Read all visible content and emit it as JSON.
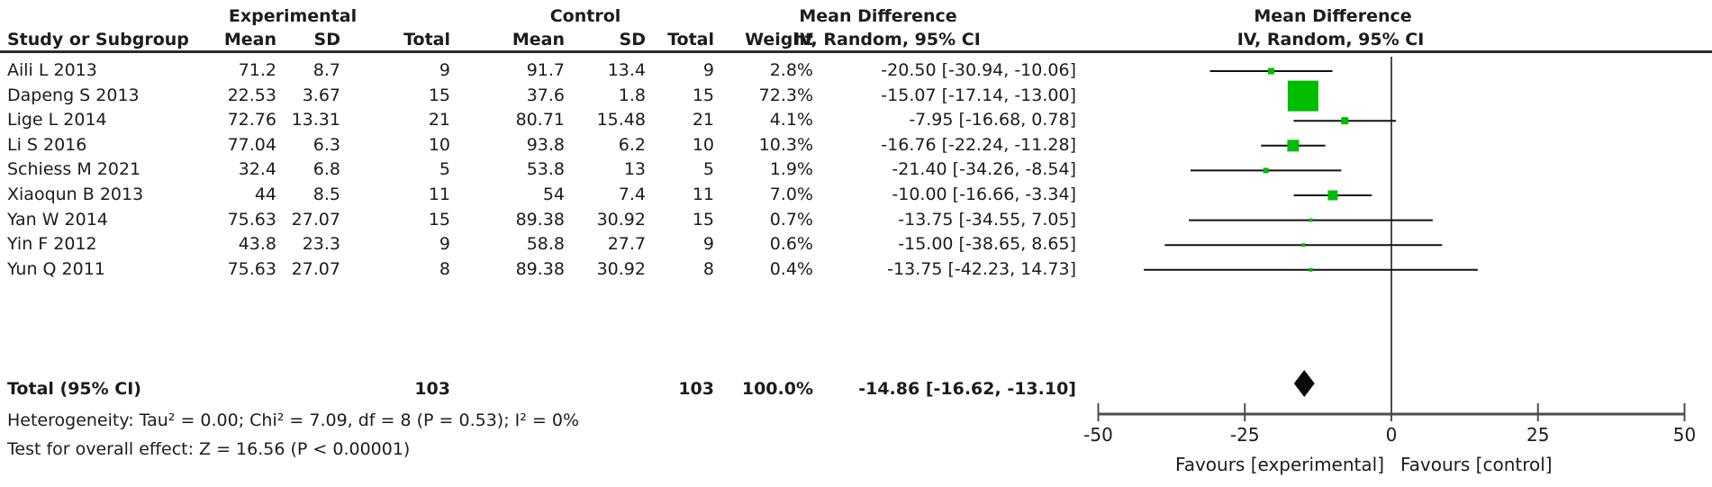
{
  "table": {
    "group_headers": {
      "experimental": "Experimental",
      "control": "Control",
      "mean_difference_left": "Mean Difference",
      "mean_difference_right": "Mean Difference"
    },
    "column_headers": {
      "study": "Study or Subgroup",
      "exp_mean": "Mean",
      "exp_sd": "SD",
      "exp_total": "Total",
      "ctrl_mean": "Mean",
      "ctrl_sd": "SD",
      "ctrl_total": "Total",
      "weight": "Weight",
      "ci_left": "IV, Random, 95% CI",
      "ci_right": "IV, Random, 95% CI"
    },
    "rows": [
      {
        "study": "Aili L 2013",
        "exp_mean": "71.2",
        "exp_sd": "8.7",
        "exp_total": "9",
        "ctrl_mean": "91.7",
        "ctrl_sd": "13.4",
        "ctrl_total": "9",
        "weight": "2.8%",
        "ci": "-20.50 [-30.94, -10.06]"
      },
      {
        "study": "Dapeng S 2013",
        "exp_mean": "22.53",
        "exp_sd": "3.67",
        "exp_total": "15",
        "ctrl_mean": "37.6",
        "ctrl_sd": "1.8",
        "ctrl_total": "15",
        "weight": "72.3%",
        "ci": "-15.07 [-17.14, -13.00]"
      },
      {
        "study": "Lige L 2014",
        "exp_mean": "72.76",
        "exp_sd": "13.31",
        "exp_total": "21",
        "ctrl_mean": "80.71",
        "ctrl_sd": "15.48",
        "ctrl_total": "21",
        "weight": "4.1%",
        "ci": "-7.95 [-16.68, 0.78]"
      },
      {
        "study": "Li S 2016",
        "exp_mean": "77.04",
        "exp_sd": "6.3",
        "exp_total": "10",
        "ctrl_mean": "93.8",
        "ctrl_sd": "6.2",
        "ctrl_total": "10",
        "weight": "10.3%",
        "ci": "-16.76 [-22.24, -11.28]"
      },
      {
        "study": "Schiess M 2021",
        "exp_mean": "32.4",
        "exp_sd": "6.8",
        "exp_total": "5",
        "ctrl_mean": "53.8",
        "ctrl_sd": "13",
        "ctrl_total": "5",
        "weight": "1.9%",
        "ci": "-21.40 [-34.26, -8.54]"
      },
      {
        "study": "Xiaoqun B 2013",
        "exp_mean": "44",
        "exp_sd": "8.5",
        "exp_total": "11",
        "ctrl_mean": "54",
        "ctrl_sd": "7.4",
        "ctrl_total": "11",
        "weight": "7.0%",
        "ci": "-10.00 [-16.66, -3.34]"
      },
      {
        "study": "Yan W  2014",
        "exp_mean": "75.63",
        "exp_sd": "27.07",
        "exp_total": "15",
        "ctrl_mean": "89.38",
        "ctrl_sd": "30.92",
        "ctrl_total": "15",
        "weight": "0.7%",
        "ci": "-13.75 [-34.55, 7.05]"
      },
      {
        "study": "Yin F 2012",
        "exp_mean": "43.8",
        "exp_sd": "23.3",
        "exp_total": "9",
        "ctrl_mean": "58.8",
        "ctrl_sd": "27.7",
        "ctrl_total": "9",
        "weight": "0.6%",
        "ci": "-15.00 [-38.65, 8.65]"
      },
      {
        "study": "Yun Q 2011",
        "exp_mean": "75.63",
        "exp_sd": "27.07",
        "exp_total": "8",
        "ctrl_mean": "89.38",
        "ctrl_sd": "30.92",
        "ctrl_total": "8",
        "weight": "0.4%",
        "ci": "-13.75 [-42.23, 14.73]"
      }
    ],
    "total_row": {
      "label": "Total (95% CI)",
      "exp_total": "103",
      "ctrl_total": "103",
      "weight": "100.0%",
      "ci": "-14.86 [-16.62, -13.10]"
    },
    "heterogeneity": "Heterogeneity: Tau² = 0.00; Chi² = 7.09, df = 8 (P = 0.53); I² = 0%",
    "overall_effect": "Test for overall effect: Z = 16.56 (P < 0.00001)"
  },
  "chart_data": {
    "type": "forest",
    "effect_measure": "Mean Difference",
    "method": "IV, Random, 95% CI",
    "studies": [
      {
        "name": "Aili L 2013",
        "md": -20.5,
        "ci": [
          -30.94,
          -10.06
        ],
        "weight_pct": 2.8
      },
      {
        "name": "Dapeng S 2013",
        "md": -15.07,
        "ci": [
          -17.14,
          -13.0
        ],
        "weight_pct": 72.3
      },
      {
        "name": "Lige L 2014",
        "md": -7.95,
        "ci": [
          -16.68,
          0.78
        ],
        "weight_pct": 4.1
      },
      {
        "name": "Li S 2016",
        "md": -16.76,
        "ci": [
          -22.24,
          -11.28
        ],
        "weight_pct": 10.3
      },
      {
        "name": "Schiess M 2021",
        "md": -21.4,
        "ci": [
          -34.26,
          -8.54
        ],
        "weight_pct": 1.9
      },
      {
        "name": "Xiaoqun B 2013",
        "md": -10.0,
        "ci": [
          -16.66,
          -3.34
        ],
        "weight_pct": 7.0
      },
      {
        "name": "Yan W 2014",
        "md": -13.75,
        "ci": [
          -34.55,
          7.05
        ],
        "weight_pct": 0.7
      },
      {
        "name": "Yin F 2012",
        "md": -15.0,
        "ci": [
          -38.65,
          8.65
        ],
        "weight_pct": 0.6
      },
      {
        "name": "Yun Q 2011",
        "md": -13.75,
        "ci": [
          -42.23,
          14.73
        ],
        "weight_pct": 0.4
      }
    ],
    "total": {
      "label": "Total (95% CI)",
      "md": -14.86,
      "ci": [
        -16.62,
        -13.1
      ],
      "weight_pct": 100.0
    },
    "xlim": [
      -50,
      50
    ],
    "x_ticks": [
      -50,
      -25,
      0,
      25,
      50
    ],
    "x_tick_labels": [
      "-50",
      "-25",
      "0",
      "25",
      "50"
    ],
    "xlabel_left": "Favours [experimental]",
    "xlabel_right": "Favours [control]",
    "marker_color": "#00bd00",
    "line_color": "#111111",
    "axis_color": "#4d4d4d",
    "diamond_color": "#0a0a0a"
  }
}
